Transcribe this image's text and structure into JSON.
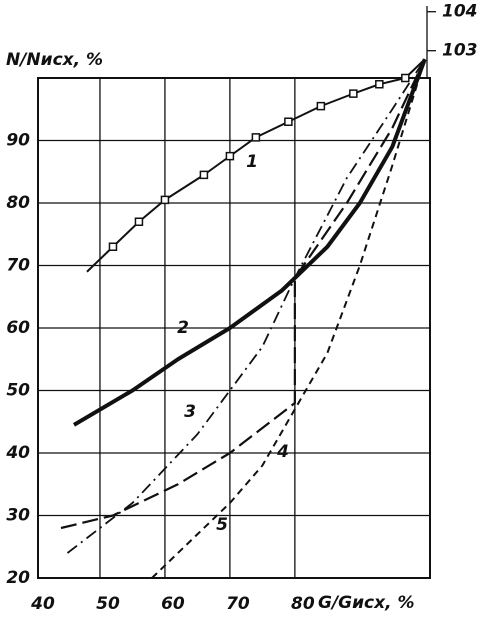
{
  "chart_data": {
    "type": "line",
    "y_label": "N/Nисх, %",
    "x_label": "G/Gисх, %",
    "xlim": [
      40,
      100.8
    ],
    "ylim": [
      20,
      100
    ],
    "xticks": [
      40,
      50,
      60,
      70,
      80
    ],
    "yticks": [
      20,
      30,
      40,
      50,
      60,
      70,
      80,
      90
    ],
    "y2lim": [
      102.3,
      104.3
    ],
    "y2ticks": [
      103,
      104
    ],
    "grid": true,
    "series": [
      {
        "name": "1",
        "color": "#111",
        "style": "solid-markers",
        "x": [
          48,
          52,
          56,
          60,
          66,
          70,
          74,
          79,
          84,
          89,
          93,
          97,
          100
        ],
        "values": [
          69,
          73,
          77,
          80.5,
          84.5,
          87.5,
          90.5,
          93,
          95.5,
          97.5,
          99,
          100,
          103
        ]
      },
      {
        "name": "2",
        "color": "#111",
        "style": "thick",
        "x": [
          46,
          55,
          62,
          70,
          78,
          85,
          90,
          95,
          100
        ],
        "values": [
          44.5,
          50,
          55,
          60,
          66,
          73,
          80,
          89,
          103
        ]
      },
      {
        "name": "3",
        "color": "#111",
        "style": "dash-dot",
        "x": [
          45,
          55,
          65,
          75,
          80,
          88,
          95,
          100
        ],
        "values": [
          24,
          32,
          43,
          57,
          68,
          84,
          95,
          103
        ]
      },
      {
        "name": "4",
        "color": "#111",
        "style": "long-dash",
        "x": [
          44,
          52,
          62,
          70,
          80,
          80,
          88,
          95,
          100
        ],
        "values": [
          28,
          30,
          35,
          40,
          48,
          68,
          80,
          92,
          103
        ]
      },
      {
        "name": "5",
        "color": "#111",
        "style": "short-dash",
        "x": [
          58,
          65,
          70,
          75,
          80,
          85,
          90,
          95,
          100
        ],
        "values": [
          20,
          27,
          32,
          38,
          47,
          56,
          70,
          86,
          103
        ]
      }
    ]
  }
}
